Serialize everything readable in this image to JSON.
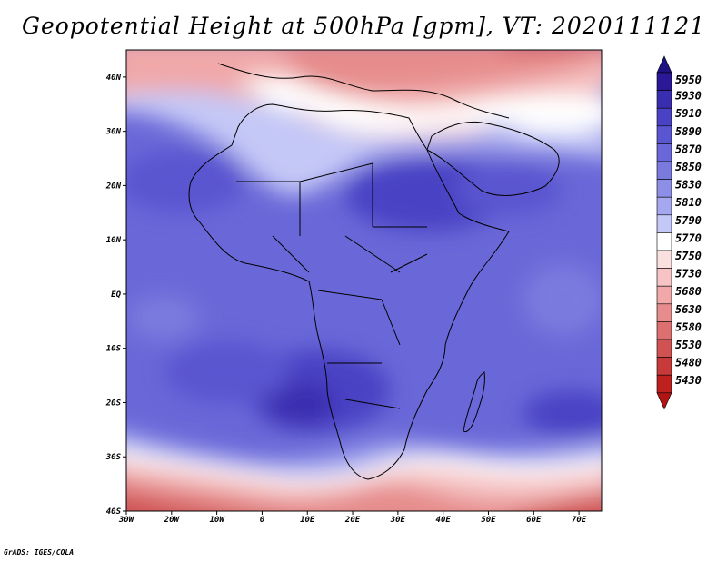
{
  "title": "Geopotential Height at 500hPa [gpm], VT: 2020111121",
  "credit": "GrADS: IGES/COLA",
  "map": {
    "lon_range": [
      -30,
      75
    ],
    "lat_range": [
      -40,
      45
    ],
    "x_ticks": [
      "30W",
      "20W",
      "10W",
      "0",
      "10E",
      "20E",
      "30E",
      "40E",
      "50E",
      "60E",
      "70E"
    ],
    "y_ticks": [
      "40S",
      "30S",
      "20S",
      "10S",
      "EQ",
      "10N",
      "20N",
      "30N",
      "40N"
    ],
    "colorbar_levels": [
      "5950",
      "5930",
      "5910",
      "5890",
      "5870",
      "5850",
      "5830",
      "5810",
      "5790",
      "5770",
      "5750",
      "5730",
      "5680",
      "5630",
      "5580",
      "5530",
      "5480",
      "5430"
    ],
    "colorbar_colors": [
      "#2a1896",
      "#3a2eb0",
      "#4a42c4",
      "#5a55d0",
      "#6a68d8",
      "#7a7ade",
      "#8d8ee6",
      "#a5a8ee",
      "#c4c8f6",
      "#ffffff",
      "#fbe0e0",
      "#f6c4c4",
      "#f0a8a8",
      "#e68c8c",
      "#dc7070",
      "#d05252",
      "#c83a3a",
      "#be2020"
    ],
    "colorbar_top_arrow_color": "#1e1282",
    "colorbar_bottom_arrow_color": "#b21414"
  }
}
